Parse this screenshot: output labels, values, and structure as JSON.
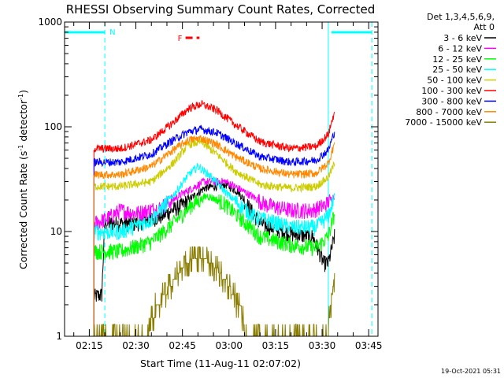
{
  "chart_data": {
    "type": "line",
    "title": "RHESSI Observing Summary Count Rates, Corrected",
    "xlabel": "Start Time (11-Aug-11 02:07:02)",
    "ylabel_main": "Corrected Count Rate (s",
    "ylabel_sup1": "-1",
    "ylabel_mid": " detector",
    "ylabel_sup2": "-1",
    "ylabel_end": ")",
    "yscale": "log",
    "xlim": [
      "02:07:02",
      "03:48:00"
    ],
    "ylim": [
      1,
      1000
    ],
    "x_ticks": [
      "02:15",
      "02:30",
      "02:45",
      "03:00",
      "03:15",
      "03:30",
      "03:45"
    ],
    "y_ticks": [
      "1",
      "10",
      "100",
      "1000"
    ],
    "legend_header": [
      "Det 1,3,4,5,6,9,",
      "Att 0"
    ],
    "legend_position": "top-right, outside plot",
    "timestamp": "19-Oct-2021 05:31",
    "flags": [
      {
        "label": "N",
        "color": "#00ffff",
        "intervals": [
          [
            "02:07:02",
            "02:20:00"
          ],
          [
            "03:33:00",
            "03:46:00"
          ]
        ],
        "level": 800
      },
      {
        "label": "F",
        "color": "#ff0000",
        "intervals": [
          [
            "02:46:00",
            "02:50:30"
          ]
        ],
        "level": 800
      }
    ],
    "vlines": [
      {
        "color": "#00ffff",
        "style": "dashed",
        "time": "02:20:00"
      },
      {
        "color": "#00ffff",
        "style": "solid",
        "time": "03:32:00"
      },
      {
        "color": "#00ffff",
        "style": "dashed",
        "time": "03:46:00"
      }
    ],
    "x_start": "02:07:02",
    "x_end": "03:34:00",
    "data_start": "02:16:30",
    "noise": 0.06,
    "series": [
      {
        "name": "3 - 6 keV",
        "color": "#000000",
        "points": [
          [
            "02:16:30",
            2.4
          ],
          [
            "02:19:00",
            2.5
          ],
          [
            "02:20:00",
            12
          ],
          [
            "02:30:00",
            12
          ],
          [
            "02:38:00",
            14
          ],
          [
            "02:45:00",
            18
          ],
          [
            "02:52:00",
            26
          ],
          [
            "02:59:00",
            28
          ],
          [
            "03:03:00",
            24
          ],
          [
            "03:10:00",
            12
          ],
          [
            "03:20:00",
            9.5
          ],
          [
            "03:27:00",
            9
          ],
          [
            "03:30:30",
            5
          ],
          [
            "03:32:00",
            5
          ],
          [
            "03:34:00",
            9
          ]
        ]
      },
      {
        "name": "6 - 12 keV",
        "color": "#ff00ff",
        "points": [
          [
            "02:16:30",
            12
          ],
          [
            "02:20:00",
            13
          ],
          [
            "02:25:00",
            16
          ],
          [
            "02:30:00",
            15
          ],
          [
            "02:38:00",
            17
          ],
          [
            "02:45:00",
            23
          ],
          [
            "02:52:00",
            30
          ],
          [
            "02:59:00",
            30
          ],
          [
            "03:05:00",
            24
          ],
          [
            "03:12:00",
            18
          ],
          [
            "03:20:00",
            16
          ],
          [
            "03:27:00",
            16
          ],
          [
            "03:31:00",
            18
          ],
          [
            "03:34:00",
            22
          ]
        ]
      },
      {
        "name": "12 - 25 keV",
        "color": "#00ff00",
        "points": [
          [
            "02:16:30",
            6.5
          ],
          [
            "02:25:00",
            6.5
          ],
          [
            "02:35:00",
            8
          ],
          [
            "02:42:00",
            12
          ],
          [
            "02:48:00",
            18
          ],
          [
            "02:53:00",
            22
          ],
          [
            "02:58:00",
            19
          ],
          [
            "03:03:00",
            14
          ],
          [
            "03:10:00",
            9
          ],
          [
            "03:20:00",
            7.5
          ],
          [
            "03:28:00",
            7
          ],
          [
            "03:32:00",
            9
          ],
          [
            "03:34:00",
            15
          ]
        ]
      },
      {
        "name": "25 - 50 keV",
        "color": "#00ffff",
        "points": [
          [
            "02:16:30",
            10
          ],
          [
            "02:25:00",
            10
          ],
          [
            "02:35:00",
            13
          ],
          [
            "02:42:00",
            22
          ],
          [
            "02:47:00",
            35
          ],
          [
            "02:50:00",
            42
          ],
          [
            "02:54:00",
            34
          ],
          [
            "03:00:00",
            22
          ],
          [
            "03:08:00",
            14
          ],
          [
            "03:20:00",
            11
          ],
          [
            "03:28:00",
            11
          ],
          [
            "03:32:00",
            14
          ],
          [
            "03:34:00",
            22
          ]
        ]
      },
      {
        "name": "50 - 100 keV",
        "color": "#cccc00",
        "points": [
          [
            "02:16:30",
            27
          ],
          [
            "02:25:00",
            27
          ],
          [
            "02:35:00",
            30
          ],
          [
            "02:42:00",
            45
          ],
          [
            "02:47:00",
            68
          ],
          [
            "02:51:00",
            72
          ],
          [
            "02:56:00",
            55
          ],
          [
            "03:02:00",
            38
          ],
          [
            "03:10:00",
            28
          ],
          [
            "03:20:00",
            26
          ],
          [
            "03:28:00",
            27
          ],
          [
            "03:32:00",
            33
          ],
          [
            "03:34:00",
            45
          ]
        ]
      },
      {
        "name": "100 - 300 keV",
        "color": "#ff0000",
        "points": [
          [
            "02:16:30",
            62
          ],
          [
            "02:25:00",
            62
          ],
          [
            "02:35:00",
            75
          ],
          [
            "02:42:00",
            110
          ],
          [
            "02:47:00",
            150
          ],
          [
            "02:51:00",
            165
          ],
          [
            "02:56:00",
            145
          ],
          [
            "03:02:00",
            105
          ],
          [
            "03:10:00",
            72
          ],
          [
            "03:20:00",
            62
          ],
          [
            "03:28:00",
            65
          ],
          [
            "03:32:00",
            85
          ],
          [
            "03:34:00",
            140
          ]
        ]
      },
      {
        "name": "300 - 800 keV",
        "color": "#0000ff",
        "points": [
          [
            "02:16:30",
            46
          ],
          [
            "02:25:00",
            46
          ],
          [
            "02:35:00",
            55
          ],
          [
            "02:42:00",
            75
          ],
          [
            "02:47:00",
            90
          ],
          [
            "02:51:00",
            95
          ],
          [
            "02:56:00",
            88
          ],
          [
            "03:02:00",
            70
          ],
          [
            "03:10:00",
            52
          ],
          [
            "03:20:00",
            46
          ],
          [
            "03:28:00",
            48
          ],
          [
            "03:32:00",
            60
          ],
          [
            "03:34:00",
            90
          ]
        ]
      },
      {
        "name": "800 - 7000 keV",
        "color": "#ff8800",
        "points": [
          [
            "02:16:30",
            35
          ],
          [
            "02:25:00",
            35
          ],
          [
            "02:35:00",
            42
          ],
          [
            "02:42:00",
            60
          ],
          [
            "02:47:00",
            75
          ],
          [
            "02:51:00",
            78
          ],
          [
            "02:56:00",
            68
          ],
          [
            "03:02:00",
            52
          ],
          [
            "03:10:00",
            40
          ],
          [
            "03:20:00",
            35
          ],
          [
            "03:28:00",
            36
          ],
          [
            "03:32:00",
            45
          ],
          [
            "03:34:00",
            70
          ]
        ]
      },
      {
        "name": "7000 - 15000 keV",
        "color": "#8b7d00",
        "points": [
          [
            "02:16:30",
            1.2
          ],
          [
            "02:34:00",
            1.2
          ],
          [
            "02:37:00",
            2
          ],
          [
            "02:41:00",
            3
          ],
          [
            "02:45:00",
            4.5
          ],
          [
            "02:48:00",
            5.5
          ],
          [
            "02:52:00",
            5.5
          ],
          [
            "02:56:00",
            4.5
          ],
          [
            "03:00:00",
            3
          ],
          [
            "03:03:00",
            2
          ],
          [
            "03:05:00",
            1.2
          ],
          [
            "03:32:00",
            1.2
          ],
          [
            "03:34:00",
            4
          ]
        ]
      }
    ]
  }
}
